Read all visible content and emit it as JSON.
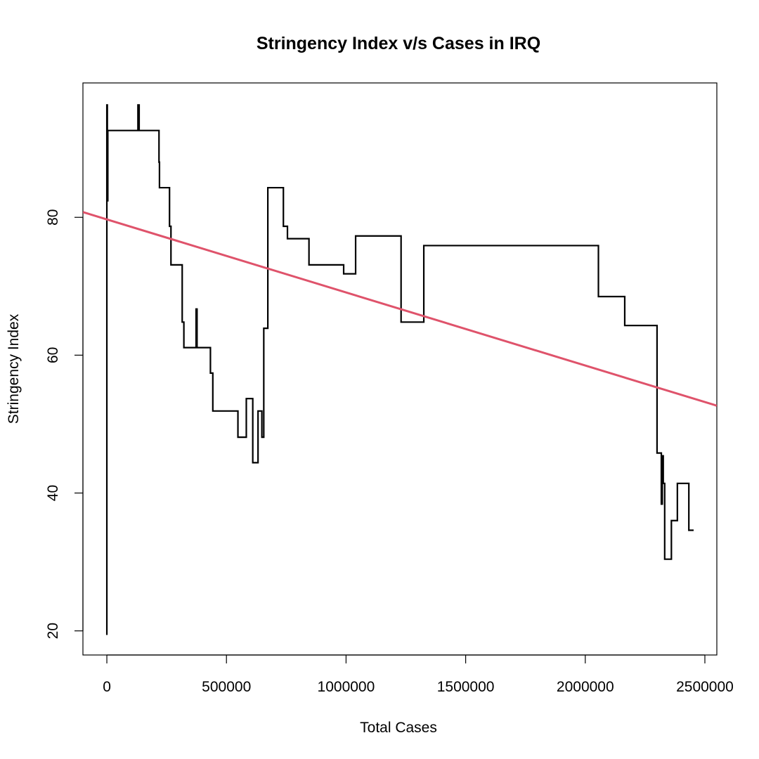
{
  "chart_data": {
    "type": "line",
    "title": "Stringency Index v/s Cases in IRQ",
    "xlabel": "Total Cases",
    "ylabel": "Stringency Index",
    "xlim": [
      -100000,
      2550000
    ],
    "ylim": [
      16.5,
      99.5
    ],
    "x_ticks": [
      0,
      500000,
      1000000,
      1500000,
      2000000,
      2500000
    ],
    "x_tick_labels": [
      "0",
      "500000",
      "1000000",
      "1500000",
      "2000000",
      "2500000"
    ],
    "y_ticks": [
      20,
      40,
      60,
      80
    ],
    "y_tick_labels": [
      "20",
      "40",
      "60",
      "80"
    ],
    "grid": false,
    "series": [
      {
        "color": "#000000",
        "points": [
          [
            0,
            19.4
          ],
          [
            0,
            96.3
          ],
          [
            2000,
            96.3
          ],
          [
            2000,
            82.4
          ],
          [
            4000,
            82.4
          ],
          [
            4000,
            92.6
          ],
          [
            130000,
            92.6
          ],
          [
            130000,
            96.3
          ],
          [
            135000,
            96.3
          ],
          [
            135000,
            92.6
          ],
          [
            218000,
            92.6
          ],
          [
            218000,
            88.0
          ],
          [
            220000,
            88.0
          ],
          [
            220000,
            84.3
          ],
          [
            262000,
            84.3
          ],
          [
            262000,
            78.7
          ],
          [
            268000,
            78.7
          ],
          [
            268000,
            73.1
          ],
          [
            315000,
            73.1
          ],
          [
            315000,
            64.8
          ],
          [
            322000,
            64.8
          ],
          [
            322000,
            61.1
          ],
          [
            373000,
            61.1
          ],
          [
            373000,
            66.7
          ],
          [
            377000,
            66.7
          ],
          [
            377000,
            61.1
          ],
          [
            433000,
            61.1
          ],
          [
            433000,
            57.4
          ],
          [
            443000,
            57.4
          ],
          [
            443000,
            51.9
          ],
          [
            548000,
            51.9
          ],
          [
            548000,
            48.1
          ],
          [
            583000,
            48.1
          ],
          [
            583000,
            53.7
          ],
          [
            610000,
            53.7
          ],
          [
            610000,
            44.4
          ],
          [
            632000,
            44.4
          ],
          [
            632000,
            51.9
          ],
          [
            648000,
            51.9
          ],
          [
            648000,
            48.1
          ],
          [
            656000,
            48.1
          ],
          [
            656000,
            63.9
          ],
          [
            673000,
            63.9
          ],
          [
            673000,
            84.3
          ],
          [
            738000,
            84.3
          ],
          [
            738000,
            78.7
          ],
          [
            755000,
            78.7
          ],
          [
            755000,
            76.9
          ],
          [
            845000,
            76.9
          ],
          [
            845000,
            73.1
          ],
          [
            990000,
            73.1
          ],
          [
            990000,
            71.8
          ],
          [
            1040000,
            71.8
          ],
          [
            1040000,
            77.3
          ],
          [
            1230000,
            77.3
          ],
          [
            1230000,
            64.8
          ],
          [
            1325000,
            64.8
          ],
          [
            1325000,
            75.9
          ],
          [
            2055000,
            75.9
          ],
          [
            2055000,
            68.5
          ],
          [
            2165000,
            68.5
          ],
          [
            2165000,
            64.3
          ],
          [
            2300000,
            64.3
          ],
          [
            2300000,
            45.8
          ],
          [
            2318000,
            45.8
          ],
          [
            2318000,
            38.4
          ],
          [
            2322000,
            38.4
          ],
          [
            2322000,
            45.4
          ],
          [
            2326000,
            45.4
          ],
          [
            2326000,
            41.4
          ],
          [
            2332000,
            41.4
          ],
          [
            2332000,
            30.4
          ],
          [
            2360000,
            30.4
          ],
          [
            2360000,
            36.0
          ],
          [
            2385000,
            36.0
          ],
          [
            2385000,
            41.4
          ],
          [
            2433000,
            41.4
          ],
          [
            2433000,
            34.6
          ],
          [
            2453000,
            34.6
          ]
        ]
      }
    ],
    "regression_line": {
      "color": "#DF536B",
      "intercept": 79.7,
      "slope": -1.06e-05
    }
  }
}
